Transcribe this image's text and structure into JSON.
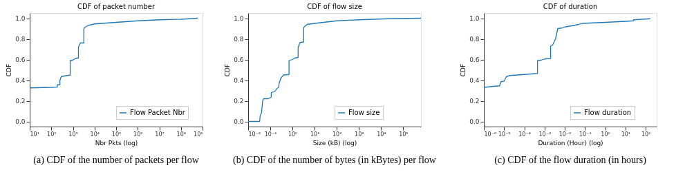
{
  "chart_data": [
    {
      "type": "line",
      "title": "CDF of packet number",
      "xlabel": "Nbr Pkts (log)",
      "ylabel": "CDF",
      "log": "x",
      "grid": false,
      "legend": "bottom right",
      "marker": "none",
      "line_style": "solid",
      "xlim": [
        10,
        1000000000
      ],
      "ylim": [
        -0.05,
        1.05
      ],
      "xticks": [
        {
          "value": 10,
          "label": "10¹"
        },
        {
          "value": 100,
          "label": "10²"
        },
        {
          "value": 1000,
          "label": "10³"
        },
        {
          "value": 10000,
          "label": "10⁴"
        },
        {
          "value": 100000,
          "label": "10⁵"
        },
        {
          "value": 1000000,
          "label": "10⁶"
        },
        {
          "value": 10000000,
          "label": "10⁷"
        },
        {
          "value": 100000000,
          "label": "10⁸"
        },
        {
          "value": 1000000000,
          "label": "10⁹"
        }
      ],
      "yticks": [
        {
          "value": 0,
          "label": "0.0"
        },
        {
          "value": 0.2,
          "label": "0.2"
        },
        {
          "value": 0.4,
          "label": "0.4"
        },
        {
          "value": 0.6,
          "label": "0.6"
        },
        {
          "value": 0.8,
          "label": "0.8"
        },
        {
          "value": 1,
          "label": "1.0"
        }
      ],
      "series": [
        {
          "name": "Flow Packet Nbr",
          "color": "#1f77b4",
          "x": [
            10,
            100,
            190,
            190,
            250,
            250,
            290,
            400,
            750,
            750,
            1000,
            1300,
            1800,
            1800,
            2200,
            3200,
            3200,
            3500,
            5000,
            10000,
            100000,
            1000000,
            10000000,
            100000000,
            600000000
          ],
          "values": [
            0.325,
            0.33,
            0.333,
            0.355,
            0.355,
            0.4,
            0.435,
            0.44,
            0.45,
            0.59,
            0.595,
            0.61,
            0.615,
            0.72,
            0.76,
            0.76,
            0.9,
            0.91,
            0.93,
            0.945,
            0.96,
            0.975,
            0.985,
            0.99,
            1.0
          ]
        }
      ],
      "annotations": [
        "(a)   CDF of the number of packets per flow"
      ]
    },
    {
      "type": "line",
      "title": "CDF of flow size",
      "xlabel": "Size (kB) (log)",
      "ylabel": "CDF",
      "log": "x",
      "grid": false,
      "legend": "bottom right",
      "marker": "none",
      "line_style": "solid",
      "xlim": [
        0.01,
        630000
      ],
      "ylim": [
        -0.05,
        1.05
      ],
      "xticks": [
        {
          "value": 0.01,
          "label": "10⁻²"
        },
        {
          "value": 0.1,
          "label": "10⁻¹"
        },
        {
          "value": 1,
          "label": "10⁰"
        },
        {
          "value": 10,
          "label": "10¹"
        },
        {
          "value": 100,
          "label": "10²"
        },
        {
          "value": 1000,
          "label": "10³"
        },
        {
          "value": 10000,
          "label": "10⁴"
        },
        {
          "value": 100000,
          "label": "10⁵"
        }
      ],
      "yticks": [
        {
          "value": 0,
          "label": "0.0"
        },
        {
          "value": 0.2,
          "label": "0.2"
        },
        {
          "value": 0.4,
          "label": "0.4"
        },
        {
          "value": 0.6,
          "label": "0.6"
        },
        {
          "value": 0.8,
          "label": "0.8"
        },
        {
          "value": 1,
          "label": "1.0"
        }
      ],
      "series": [
        {
          "name": "Flow size",
          "color": "#1f77b4",
          "x": [
            0.01,
            0.033,
            0.035,
            0.04,
            0.045,
            0.05,
            0.08,
            0.11,
            0.11,
            0.16,
            0.2,
            0.24,
            0.25,
            0.3,
            0.4,
            0.7,
            0.7,
            1.0,
            1.3,
            1.8,
            1.8,
            2.2,
            3.2,
            3.2,
            3.6,
            4.5,
            10,
            100,
            1000,
            20000,
            630000
          ],
          "values": [
            0,
            0,
            0.06,
            0.08,
            0.2,
            0.22,
            0.22,
            0.235,
            0.28,
            0.29,
            0.32,
            0.33,
            0.37,
            0.42,
            0.45,
            0.455,
            0.59,
            0.6,
            0.615,
            0.62,
            0.72,
            0.765,
            0.77,
            0.91,
            0.92,
            0.94,
            0.95,
            0.975,
            0.985,
            0.995,
            1.0
          ]
        }
      ],
      "annotations": [
        "(b)   CDF of the number of bytes (in kBytes) per flow"
      ]
    },
    {
      "type": "line",
      "title": "CDF of duration",
      "xlabel": "Duration (Hour) (log)",
      "ylabel": "CDF",
      "log": "x",
      "grid": false,
      "legend": "bottom right",
      "marker": "none",
      "line_style": "solid",
      "xlim": [
        1e-06,
        350
      ],
      "ylim": [
        -0.05,
        1.05
      ],
      "xticks": [
        {
          "value": 1e-06,
          "label": "10⁻⁶"
        },
        {
          "value": 1e-05,
          "label": "10⁻⁵"
        },
        {
          "value": 0.0001,
          "label": "10⁻⁴"
        },
        {
          "value": 0.001,
          "label": "10⁻³"
        },
        {
          "value": 0.01,
          "label": "10⁻²"
        },
        {
          "value": 0.1,
          "label": "10⁻¹"
        },
        {
          "value": 1,
          "label": "10⁰"
        },
        {
          "value": 10,
          "label": "10¹"
        },
        {
          "value": 100,
          "label": "10²"
        }
      ],
      "yticks": [
        {
          "value": 0,
          "label": "0.0"
        },
        {
          "value": 0.2,
          "label": "0.2"
        },
        {
          "value": 0.4,
          "label": "0.4"
        },
        {
          "value": 0.6,
          "label": "0.6"
        },
        {
          "value": 0.8,
          "label": "0.8"
        },
        {
          "value": 1,
          "label": "1.0"
        }
      ],
      "series": [
        {
          "name": "Flow duration",
          "color": "#1f77b4",
          "x": [
            1e-06,
            3e-06,
            6e-06,
            7e-06,
            1e-05,
            1.3e-05,
            2e-05,
            0.0001,
            0.00045,
            0.00045,
            0.0007,
            0.001,
            0.002,
            0.002,
            0.0025,
            0.0035,
            0.0045,
            0.007,
            0.01,
            0.02,
            0.05,
            0.07,
            1,
            10,
            25,
            25,
            170
          ],
          "values": [
            0.33,
            0.34,
            0.345,
            0.385,
            0.39,
            0.435,
            0.445,
            0.455,
            0.465,
            0.59,
            0.595,
            0.605,
            0.61,
            0.73,
            0.74,
            0.8,
            0.9,
            0.905,
            0.915,
            0.925,
            0.94,
            0.95,
            0.96,
            0.97,
            0.975,
            0.985,
            0.995
          ]
        }
      ],
      "annotations": [
        "(c)   CDF of the flow duration (in hours)"
      ]
    }
  ]
}
